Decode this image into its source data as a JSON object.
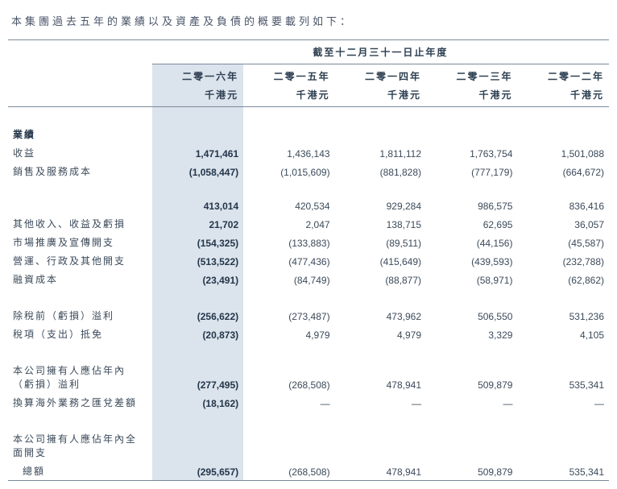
{
  "intro": "本集團過去五年的業績以及資產及負債的概要載列如下：",
  "periodHeader": "截至十二月三十一日止年度",
  "years": [
    "二零一六年",
    "二零一五年",
    "二零一四年",
    "二零一三年",
    "二零一二年"
  ],
  "unit": "千港元",
  "sections": {
    "results": "業績"
  },
  "rows": {
    "r1": {
      "label": "收益",
      "v": [
        "1,471,461",
        "1,436,143",
        "1,811,112",
        "1,763,754",
        "1,501,088"
      ]
    },
    "r2": {
      "label": "銷售及服務成本",
      "v": [
        "(1,058,447)",
        "(1,015,609)",
        "(881,828)",
        "(777,179)",
        "(664,672)"
      ]
    },
    "r3": {
      "label": "",
      "v": [
        "413,014",
        "420,534",
        "929,284",
        "986,575",
        "836,416"
      ]
    },
    "r4": {
      "label": "其他收入、收益及虧損",
      "v": [
        "21,702",
        "2,047",
        "138,715",
        "62,695",
        "36,057"
      ]
    },
    "r5": {
      "label": "市場推廣及宣傳開支",
      "v": [
        "(154,325)",
        "(133,883)",
        "(89,511)",
        "(44,156)",
        "(45,587)"
      ]
    },
    "r6": {
      "label": "營運、行政及其他開支",
      "v": [
        "(513,522)",
        "(477,436)",
        "(415,649)",
        "(439,593)",
        "(232,788)"
      ]
    },
    "r7": {
      "label": "融資成本",
      "v": [
        "(23,491)",
        "(84,749)",
        "(88,877)",
        "(58,971)",
        "(62,862)"
      ]
    },
    "r8": {
      "label": "除稅前（虧損）溢利",
      "v": [
        "(256,622)",
        "(273,487)",
        "473,962",
        "506,550",
        "531,236"
      ]
    },
    "r9": {
      "label": "稅項（支出）抵免",
      "v": [
        "(20,873)",
        "4,979",
        "4,979",
        "3,329",
        "4,105"
      ]
    },
    "r10": {
      "label": "本公司擁有人應佔年內（虧損）溢利",
      "v": [
        "(277,495)",
        "(268,508)",
        "478,941",
        "509,879",
        "535,341"
      ]
    },
    "r11": {
      "label": "換算海外業務之匯兌差額",
      "v": [
        "(18,162)",
        "—",
        "—",
        "—",
        "—"
      ]
    },
    "r12a": {
      "label": "本公司擁有人應佔年內全面開支"
    },
    "r12": {
      "label": "總額",
      "v": [
        "(295,657)",
        "(268,508)",
        "478,941",
        "509,879",
        "535,341"
      ]
    }
  },
  "style": {
    "boldColBg": "#dbe3ec",
    "textColor": "#3b4a5a",
    "borderColor": "#7a8a99"
  }
}
